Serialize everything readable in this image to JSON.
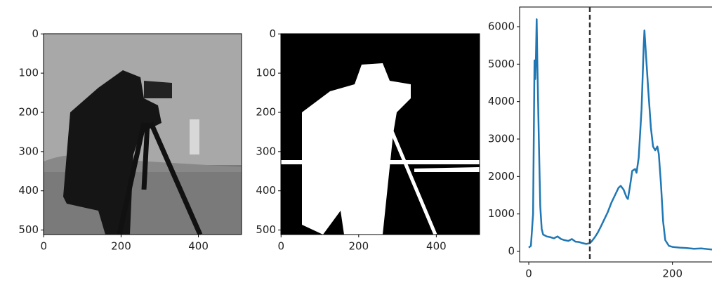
{
  "chart_data": [
    {
      "type": "image",
      "xlim": [
        -0.5,
        511.5
      ],
      "ylim": [
        511.5,
        -0.5
      ],
      "xticks": [
        0,
        200,
        400
      ],
      "yticks": [
        0,
        100,
        200,
        300,
        400,
        500
      ]
    },
    {
      "type": "image",
      "xlim": [
        -0.5,
        511.5
      ],
      "ylim": [
        511.5,
        -0.5
      ],
      "xticks": [
        0,
        200,
        400
      ],
      "yticks": [
        0,
        100,
        200,
        300,
        400,
        500
      ]
    },
    {
      "type": "line",
      "x": [
        0,
        3,
        6,
        8,
        9,
        10,
        11,
        12,
        14,
        16,
        18,
        20,
        25,
        30,
        35,
        40,
        45,
        50,
        55,
        60,
        65,
        70,
        75,
        80,
        85,
        88,
        92,
        96,
        100,
        105,
        110,
        115,
        120,
        125,
        128,
        132,
        136,
        138,
        141,
        144,
        148,
        150,
        153,
        157,
        160,
        161,
        163,
        166,
        170,
        173,
        176,
        179,
        181,
        184,
        187,
        190,
        195,
        200,
        210,
        220,
        230,
        240,
        250,
        255
      ],
      "series": [
        {
          "color": "#1f77b4",
          "values": [
            100,
            150,
            1000,
            5100,
            4600,
            5200,
            6200,
            5000,
            3000,
            1200,
            600,
            450,
            400,
            380,
            350,
            400,
            330,
            300,
            280,
            330,
            260,
            250,
            220,
            200,
            220,
            280,
            380,
            500,
            650,
            850,
            1050,
            1300,
            1500,
            1700,
            1750,
            1650,
            1450,
            1400,
            1750,
            2150,
            2200,
            2100,
            2500,
            3800,
            5500,
            5900,
            5300,
            4400,
            3300,
            2800,
            2700,
            2800,
            2600,
            1800,
            800,
            300,
            150,
            120,
            100,
            90,
            70,
            80,
            60,
            50
          ]
        }
      ],
      "threshold": 85,
      "threshold_color": "#333333",
      "xlim": [
        -12.75,
        267.75
      ],
      "ylim": [
        -281,
        6525
      ],
      "xticks": [
        0,
        200
      ],
      "yticks": [
        0,
        1000,
        2000,
        3000,
        4000,
        5000,
        6000
      ]
    }
  ]
}
